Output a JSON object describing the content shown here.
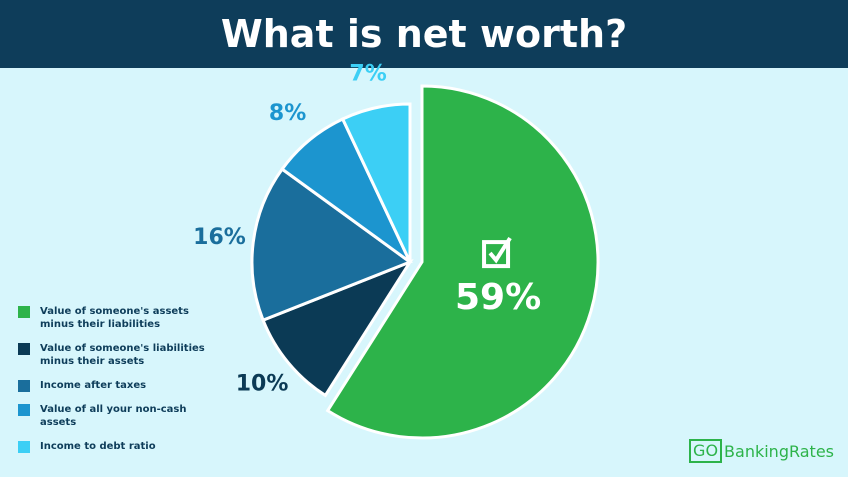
{
  "chart_data": {
    "type": "pie",
    "title": "What is net worth?",
    "categories": [
      "Value of someone's assets minus their liabilities",
      "Value of someone's liabilities minus their assets",
      "Income after taxes",
      "Value of all your non-cash assets",
      "Income to debt ratio"
    ],
    "values": [
      59,
      10,
      16,
      8,
      7
    ],
    "value_labels": [
      "59%",
      "10%",
      "16%",
      "8%",
      "7%"
    ],
    "colors": [
      "#2db34a",
      "#0b3a55",
      "#1a6e9c",
      "#1c95cf",
      "#3ccff5"
    ]
  },
  "logo": {
    "prefix": "GO",
    "name": "BankingRates"
  }
}
